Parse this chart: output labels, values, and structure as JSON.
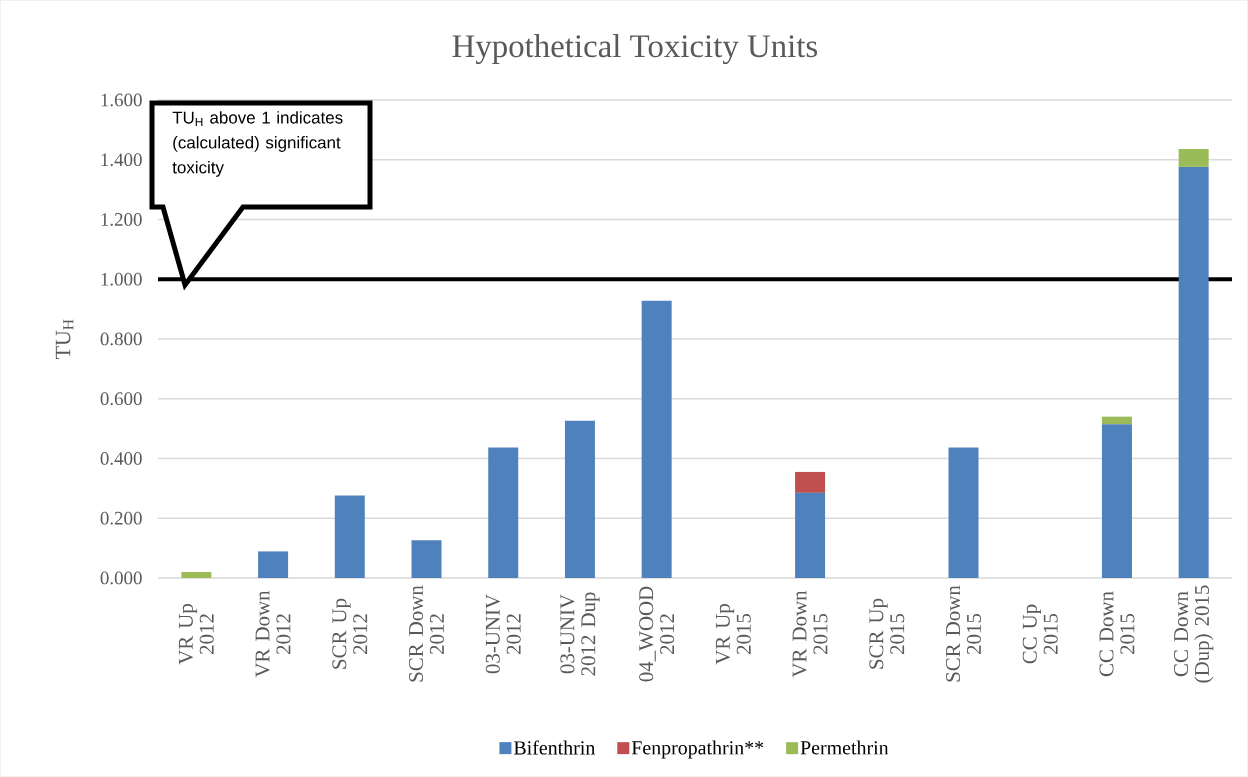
{
  "chart_data": {
    "type": "bar",
    "title": "Hypothetical Toxicity Units",
    "ylabel": "TU$_{H}$",
    "categories": [
      "VR Up 2012",
      "VR Down 2012",
      "SCR Up 2012",
      "SCR Down 2012",
      "03-UNIV 2012",
      "03-UNIV 2012 Dup",
      "04_WOOD 2012",
      "VR Up 2015",
      "VR Down 2015",
      "SCR Up 2015",
      "SCR Down 2015",
      "CC Up 2015",
      "CC Down 2015",
      "CC Down (Dup) 2015"
    ],
    "series": [
      {
        "name": "Bifenthrin",
        "color": "#4f81bd",
        "values": [
          0,
          0.089,
          0.276,
          0.126,
          0.437,
          0.526,
          0.928,
          0,
          0.285,
          0,
          0.437,
          0,
          0.515,
          1.376
        ]
      },
      {
        "name": "Fenpropathrin**",
        "color": "#c0504d",
        "values": [
          0,
          0,
          0,
          0,
          0,
          0,
          0,
          0,
          0.07,
          0,
          0,
          0,
          0,
          0
        ]
      },
      {
        "name": "Permethrin",
        "color": "#9bbb59",
        "values": [
          0.02,
          0,
          0,
          0,
          0,
          0,
          0,
          0,
          0,
          0,
          0,
          0,
          0.025,
          0.06
        ]
      }
    ],
    "stacked": true,
    "ylim": [
      0,
      1.6
    ],
    "yticks": [
      {
        "value": 0,
        "label": "0.000"
      },
      {
        "value": 0.2,
        "label": "0.200"
      },
      {
        "value": 0.4,
        "label": "0.400"
      },
      {
        "value": 0.6,
        "label": "0.600"
      },
      {
        "value": 0.8,
        "label": "0.800"
      },
      {
        "value": 1,
        "label": "1.000"
      },
      {
        "value": 1.2,
        "label": "1.200"
      },
      {
        "value": 1.4,
        "label": "1.400"
      },
      {
        "value": 1.6,
        "label": "1.600"
      }
    ],
    "grid": "y",
    "legend": "bottom",
    "ref_lines": [
      {
        "axis": "y",
        "value": 1,
        "color": "#000000"
      }
    ],
    "annotations": [
      "TU$_{H}$ above 1 indicates (calculated) significant toxicity"
    ]
  }
}
